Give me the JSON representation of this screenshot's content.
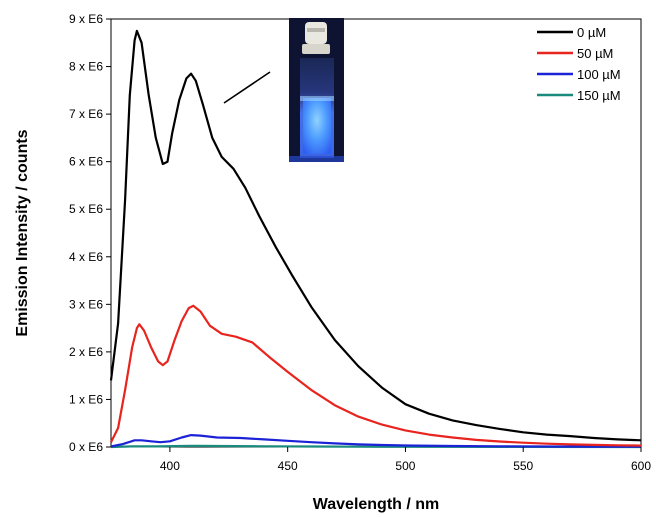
{
  "chart_data": {
    "type": "line",
    "xlabel": "Wavelength / nm",
    "ylabel": "Emission Intensity / counts",
    "xlim": [
      375,
      600
    ],
    "ylim": [
      0,
      9000000
    ],
    "x_ticks": [
      400,
      450,
      500,
      550,
      600
    ],
    "y_ticks": [
      0,
      1000000,
      2000000,
      3000000,
      4000000,
      5000000,
      6000000,
      7000000,
      8000000,
      9000000
    ],
    "y_tick_labels": [
      "0 x E6",
      "1 x E6",
      "2 x E6",
      "3 x E6",
      "4 x E6",
      "5 x E6",
      "6 x E6",
      "7 x E6",
      "8 x E6",
      "9 x E6"
    ],
    "grid": false,
    "legend_position": "top-right",
    "inset": "photo of a capped cuvette glowing blue under UV light",
    "series": [
      {
        "name": "0 µM",
        "color": "#000000",
        "points": [
          [
            375,
            1400000
          ],
          [
            378,
            2600000
          ],
          [
            381,
            5200000
          ],
          [
            383,
            7400000
          ],
          [
            385,
            8550000
          ],
          [
            386,
            8750000
          ],
          [
            388,
            8500000
          ],
          [
            391,
            7400000
          ],
          [
            394,
            6500000
          ],
          [
            397,
            5950000
          ],
          [
            399,
            6000000
          ],
          [
            401,
            6600000
          ],
          [
            404,
            7300000
          ],
          [
            407,
            7750000
          ],
          [
            409,
            7850000
          ],
          [
            411,
            7700000
          ],
          [
            414,
            7200000
          ],
          [
            418,
            6500000
          ],
          [
            422,
            6100000
          ],
          [
            427,
            5850000
          ],
          [
            432,
            5450000
          ],
          [
            438,
            4850000
          ],
          [
            445,
            4200000
          ],
          [
            452,
            3600000
          ],
          [
            460,
            2950000
          ],
          [
            470,
            2250000
          ],
          [
            480,
            1700000
          ],
          [
            490,
            1250000
          ],
          [
            500,
            900000
          ],
          [
            510,
            700000
          ],
          [
            520,
            560000
          ],
          [
            530,
            460000
          ],
          [
            540,
            380000
          ],
          [
            550,
            310000
          ],
          [
            560,
            260000
          ],
          [
            570,
            230000
          ],
          [
            580,
            190000
          ],
          [
            590,
            160000
          ],
          [
            600,
            140000
          ]
        ]
      },
      {
        "name": "50 µM",
        "color": "#e8241e",
        "points": [
          [
            375,
            100000
          ],
          [
            378,
            400000
          ],
          [
            381,
            1200000
          ],
          [
            384,
            2100000
          ],
          [
            386,
            2500000
          ],
          [
            387,
            2580000
          ],
          [
            389,
            2450000
          ],
          [
            392,
            2100000
          ],
          [
            395,
            1800000
          ],
          [
            397,
            1720000
          ],
          [
            399,
            1800000
          ],
          [
            402,
            2250000
          ],
          [
            405,
            2650000
          ],
          [
            408,
            2920000
          ],
          [
            410,
            2970000
          ],
          [
            413,
            2850000
          ],
          [
            417,
            2550000
          ],
          [
            422,
            2380000
          ],
          [
            428,
            2320000
          ],
          [
            435,
            2200000
          ],
          [
            442,
            1900000
          ],
          [
            450,
            1580000
          ],
          [
            460,
            1200000
          ],
          [
            470,
            880000
          ],
          [
            480,
            640000
          ],
          [
            490,
            470000
          ],
          [
            500,
            350000
          ],
          [
            510,
            260000
          ],
          [
            520,
            200000
          ],
          [
            530,
            150000
          ],
          [
            540,
            115000
          ],
          [
            550,
            90000
          ],
          [
            560,
            70000
          ],
          [
            570,
            55000
          ],
          [
            580,
            45000
          ],
          [
            590,
            35000
          ],
          [
            600,
            30000
          ]
        ]
      },
      {
        "name": "100 µM",
        "color": "#1c22d6",
        "points": [
          [
            375,
            10000
          ],
          [
            380,
            60000
          ],
          [
            385,
            140000
          ],
          [
            388,
            140000
          ],
          [
            392,
            120000
          ],
          [
            396,
            100000
          ],
          [
            400,
            120000
          ],
          [
            405,
            200000
          ],
          [
            409,
            250000
          ],
          [
            413,
            240000
          ],
          [
            420,
            200000
          ],
          [
            430,
            190000
          ],
          [
            440,
            160000
          ],
          [
            450,
            130000
          ],
          [
            460,
            100000
          ],
          [
            470,
            75000
          ],
          [
            480,
            55000
          ],
          [
            490,
            42000
          ],
          [
            500,
            32000
          ],
          [
            520,
            20000
          ],
          [
            540,
            14000
          ],
          [
            560,
            10000
          ],
          [
            580,
            8000
          ],
          [
            600,
            6000
          ]
        ]
      },
      {
        "name": "150 µM",
        "color": "#1a8a7c",
        "points": [
          [
            375,
            0
          ],
          [
            385,
            15000
          ],
          [
            395,
            12000
          ],
          [
            405,
            20000
          ],
          [
            410,
            25000
          ],
          [
            420,
            20000
          ],
          [
            440,
            15000
          ],
          [
            460,
            10000
          ],
          [
            480,
            7000
          ],
          [
            500,
            5000
          ],
          [
            550,
            2000
          ],
          [
            600,
            1000
          ]
        ]
      }
    ]
  }
}
